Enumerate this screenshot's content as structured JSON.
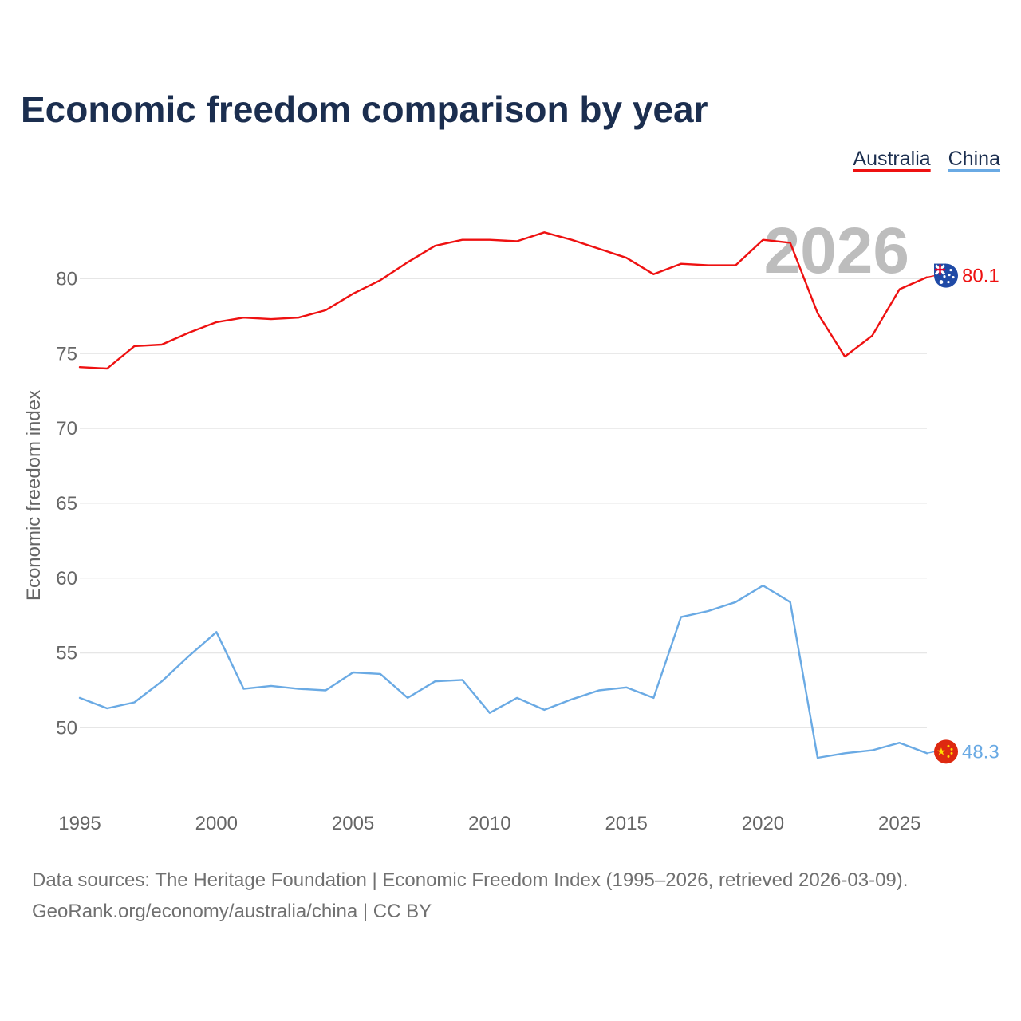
{
  "chart_data": {
    "type": "line",
    "title": "Economic freedom comparison by year",
    "xlabel": "",
    "ylabel": "Economic freedom index",
    "x": [
      1995,
      1996,
      1997,
      1998,
      1999,
      2000,
      2001,
      2002,
      2003,
      2004,
      2005,
      2006,
      2007,
      2008,
      2009,
      2010,
      2011,
      2012,
      2013,
      2014,
      2015,
      2016,
      2017,
      2018,
      2019,
      2020,
      2021,
      2022,
      2023,
      2024,
      2025,
      2026
    ],
    "xlim": [
      1995,
      2026
    ],
    "ylim": [
      44.8,
      85.3
    ],
    "x_ticks": [
      1995,
      2000,
      2005,
      2010,
      2015,
      2020,
      2025
    ],
    "y_ticks": [
      50,
      55,
      60,
      65,
      70,
      75,
      80
    ],
    "grid": true,
    "legend_position": "top-right",
    "current_year": "2026",
    "series": [
      {
        "name": "Australia",
        "color": "#ee1111",
        "flag_icon": "australia-flag-icon",
        "end_label": "80.1",
        "values": [
          74.1,
          74.0,
          75.5,
          75.6,
          76.4,
          77.1,
          77.4,
          77.3,
          77.4,
          77.9,
          79.0,
          79.9,
          81.1,
          82.2,
          82.6,
          82.6,
          82.5,
          83.1,
          82.6,
          82.0,
          81.4,
          80.3,
          81.0,
          80.9,
          80.9,
          82.6,
          82.4,
          77.7,
          74.8,
          76.2,
          79.3,
          80.1
        ]
      },
      {
        "name": "China",
        "color": "#6aaae4",
        "flag_icon": "china-flag-icon",
        "end_label": "48.3",
        "values": [
          52.0,
          51.3,
          51.7,
          53.1,
          54.8,
          56.4,
          52.6,
          52.8,
          52.6,
          52.5,
          53.7,
          53.6,
          52.0,
          53.1,
          53.2,
          51.0,
          52.0,
          51.2,
          51.9,
          52.5,
          52.7,
          52.0,
          57.4,
          57.8,
          58.4,
          59.5,
          58.4,
          48.0,
          48.3,
          48.5,
          49.0,
          48.3
        ]
      }
    ],
    "source_line1": "Data sources: The Heritage Foundation | Economic Freedom Index (1995–2026, retrieved 2026-03-09).",
    "source_line2": "GeoRank.org/economy/australia/china | CC BY"
  }
}
